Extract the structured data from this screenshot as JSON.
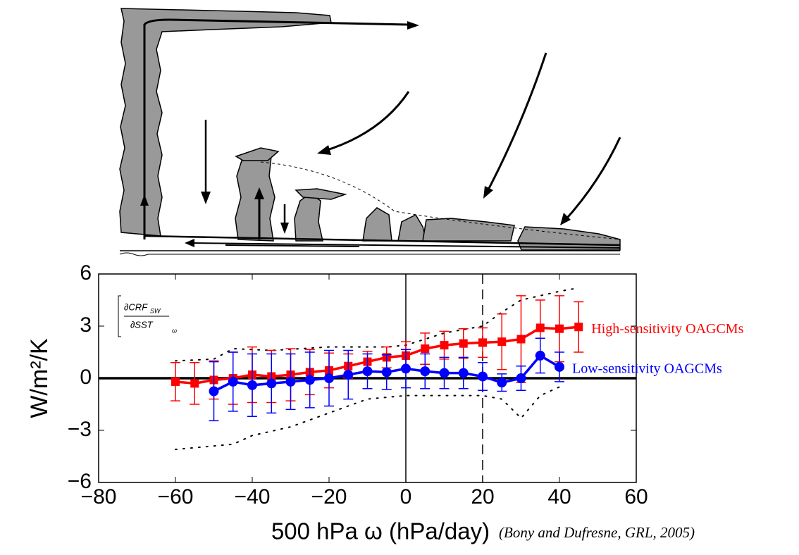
{
  "chart_data": {
    "type": "line",
    "ylabel": "W/m²/K",
    "xlabel": "500 hPa ω (hPa/day)",
    "citation": "(Bony and Dufresne, GRL, 2005)",
    "formula": {
      "numerator": "∂CRF",
      "numerator_sub": "SW",
      "denominator": "∂SST",
      "sub": "ω"
    },
    "xlim": [
      -80,
      60
    ],
    "ylim": [
      -6,
      6
    ],
    "xticks": [
      {
        "value": -80,
        "label": "−80"
      },
      {
        "value": -60,
        "label": "−60"
      },
      {
        "value": -40,
        "label": "−40"
      },
      {
        "value": -20,
        "label": "−20"
      },
      0,
      20,
      40,
      60
    ],
    "yticks": [
      {
        "value": -6,
        "label": "−6"
      },
      {
        "value": -3,
        "label": "−3"
      },
      0,
      3,
      6
    ],
    "reference_lines": {
      "x_solid": 0,
      "x_dashed": 20,
      "y_thick": 0
    },
    "series": [
      {
        "name": "High-sensitivity OAGCMs",
        "color": "#ff0000",
        "marker": "square",
        "x": [
          -60,
          -55,
          -50,
          -45,
          -40,
          -35,
          -30,
          -25,
          -20,
          -15,
          -10,
          -5,
          0,
          5,
          10,
          15,
          20,
          25,
          30,
          35,
          40,
          45
        ],
        "values": [
          -0.2,
          -0.3,
          -0.1,
          0.0,
          0.2,
          0.1,
          0.2,
          0.35,
          0.45,
          0.7,
          0.95,
          1.2,
          1.3,
          1.7,
          1.9,
          2.0,
          2.05,
          2.1,
          2.25,
          2.9,
          2.85,
          2.95
        ],
        "errors": [
          1.1,
          1.2,
          1.1,
          1.5,
          1.6,
          1.5,
          1.5,
          1.3,
          1.0,
          0.7,
          0.6,
          0.6,
          0.8,
          0.9,
          0.8,
          0.85,
          0.85,
          1.6,
          2.5,
          1.6,
          1.9,
          1.45
        ]
      },
      {
        "name": "Low-sensitivity OAGCMs",
        "color": "#0000ff",
        "marker": "circle",
        "x": [
          -50,
          -45,
          -40,
          -35,
          -30,
          -25,
          -20,
          -15,
          -10,
          -5,
          0,
          5,
          10,
          15,
          20,
          25,
          30,
          35,
          40
        ],
        "values": [
          -0.75,
          -0.2,
          -0.4,
          -0.3,
          -0.2,
          -0.1,
          0.0,
          0.2,
          0.4,
          0.35,
          0.55,
          0.4,
          0.3,
          0.3,
          0.1,
          -0.25,
          0.0,
          1.3,
          0.65
        ],
        "errors": [
          1.7,
          1.7,
          1.8,
          1.7,
          1.6,
          1.6,
          1.6,
          1.4,
          1.0,
          1.0,
          1.1,
          1.0,
          0.9,
          0.9,
          0.8,
          0.5,
          0.7,
          1.0,
          0.85
        ]
      }
    ],
    "envelopes": [
      {
        "x": [
          -60,
          -50,
          -45,
          -35,
          -20,
          -5,
          0,
          10,
          20,
          25,
          30,
          40,
          45
        ],
        "values": [
          1.0,
          1.1,
          1.7,
          1.6,
          1.8,
          1.8,
          1.9,
          2.6,
          3.0,
          3.8,
          4.5,
          5.0,
          5.2
        ]
      },
      {
        "x": [
          -60,
          -45,
          -40,
          -30,
          -20,
          -10,
          0,
          10,
          20,
          25,
          30,
          35,
          40
        ],
        "values": [
          -4.1,
          -3.8,
          -3.3,
          -2.8,
          -2.0,
          -1.2,
          -1.0,
          -1.0,
          -1.0,
          -1.2,
          -2.3,
          -1.0,
          -0.5
        ]
      }
    ]
  }
}
